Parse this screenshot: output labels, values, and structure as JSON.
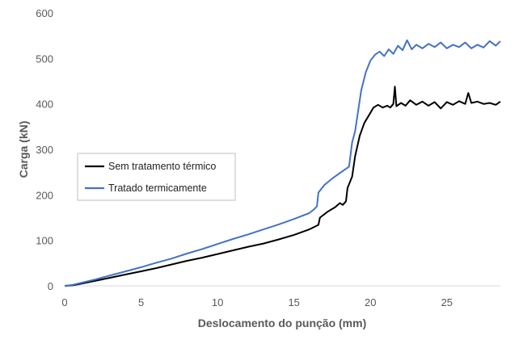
{
  "chart_data": {
    "type": "line",
    "xlabel": "Deslocamento do punção (mm)",
    "ylabel": "Carga (kN)",
    "xlim": [
      0,
      28.5
    ],
    "ylim": [
      0,
      600
    ],
    "x_ticks": [
      "0",
      "5",
      "10",
      "15",
      "20",
      "25"
    ],
    "y_ticks": [
      "0",
      "100",
      "200",
      "300",
      "400",
      "500",
      "600"
    ],
    "grid": false,
    "legend_position": "center-left",
    "series": [
      {
        "name": "Sem tratamento térmico",
        "color": "#000000",
        "points": [
          [
            0,
            0
          ],
          [
            0.5,
            1
          ],
          [
            1,
            4
          ],
          [
            2,
            11
          ],
          [
            3,
            18
          ],
          [
            4,
            25
          ],
          [
            5,
            32
          ],
          [
            6,
            39
          ],
          [
            7,
            47
          ],
          [
            8,
            55
          ],
          [
            9,
            62
          ],
          [
            10,
            70
          ],
          [
            11,
            78
          ],
          [
            12,
            86
          ],
          [
            13,
            93
          ],
          [
            14,
            102
          ],
          [
            15,
            112
          ],
          [
            16,
            124
          ],
          [
            16.6,
            134
          ],
          [
            16.7,
            150
          ],
          [
            17.2,
            163
          ],
          [
            17.7,
            173
          ],
          [
            18.0,
            182
          ],
          [
            18.2,
            178
          ],
          [
            18.4,
            186
          ],
          [
            18.5,
            215
          ],
          [
            18.8,
            240
          ],
          [
            19.0,
            285
          ],
          [
            19.3,
            330
          ],
          [
            19.6,
            358
          ],
          [
            19.9,
            375
          ],
          [
            20.2,
            392
          ],
          [
            20.5,
            398
          ],
          [
            20.8,
            392
          ],
          [
            21.1,
            396
          ],
          [
            21.3,
            392
          ],
          [
            21.5,
            400
          ],
          [
            21.6,
            438
          ],
          [
            21.7,
            395
          ],
          [
            22.0,
            402
          ],
          [
            22.3,
            396
          ],
          [
            22.6,
            408
          ],
          [
            23.0,
            398
          ],
          [
            23.4,
            405
          ],
          [
            23.8,
            396
          ],
          [
            24.2,
            404
          ],
          [
            24.6,
            390
          ],
          [
            25.0,
            404
          ],
          [
            25.4,
            398
          ],
          [
            25.8,
            406
          ],
          [
            26.2,
            400
          ],
          [
            26.4,
            424
          ],
          [
            26.6,
            402
          ],
          [
            27.0,
            405
          ],
          [
            27.4,
            400
          ],
          [
            27.8,
            402
          ],
          [
            28.2,
            398
          ],
          [
            28.5,
            405
          ]
        ]
      },
      {
        "name": "Tratado termicamente",
        "color": "#4472C4",
        "points": [
          [
            0,
            0
          ],
          [
            0.5,
            2
          ],
          [
            1,
            6
          ],
          [
            2,
            14
          ],
          [
            3,
            23
          ],
          [
            4,
            32
          ],
          [
            5,
            41
          ],
          [
            6,
            51
          ],
          [
            7,
            60
          ],
          [
            8,
            71
          ],
          [
            9,
            81
          ],
          [
            10,
            92
          ],
          [
            11,
            103
          ],
          [
            12,
            113
          ],
          [
            13,
            124
          ],
          [
            14,
            135
          ],
          [
            15,
            147
          ],
          [
            16,
            160
          ],
          [
            16.3,
            168
          ],
          [
            16.5,
            175
          ],
          [
            16.6,
            205
          ],
          [
            17.0,
            222
          ],
          [
            17.5,
            236
          ],
          [
            18.0,
            248
          ],
          [
            18.3,
            255
          ],
          [
            18.6,
            262
          ],
          [
            18.8,
            315
          ],
          [
            19.0,
            340
          ],
          [
            19.2,
            385
          ],
          [
            19.4,
            430
          ],
          [
            19.7,
            470
          ],
          [
            20.0,
            495
          ],
          [
            20.3,
            508
          ],
          [
            20.6,
            515
          ],
          [
            20.9,
            505
          ],
          [
            21.2,
            520
          ],
          [
            21.5,
            510
          ],
          [
            21.8,
            528
          ],
          [
            22.1,
            518
          ],
          [
            22.4,
            540
          ],
          [
            22.7,
            520
          ],
          [
            23.0,
            530
          ],
          [
            23.4,
            522
          ],
          [
            23.8,
            532
          ],
          [
            24.2,
            525
          ],
          [
            24.6,
            535
          ],
          [
            25.0,
            522
          ],
          [
            25.4,
            530
          ],
          [
            25.8,
            525
          ],
          [
            26.2,
            535
          ],
          [
            26.6,
            522
          ],
          [
            27.0,
            530
          ],
          [
            27.4,
            524
          ],
          [
            27.8,
            538
          ],
          [
            28.2,
            528
          ],
          [
            28.5,
            538
          ]
        ]
      }
    ]
  }
}
